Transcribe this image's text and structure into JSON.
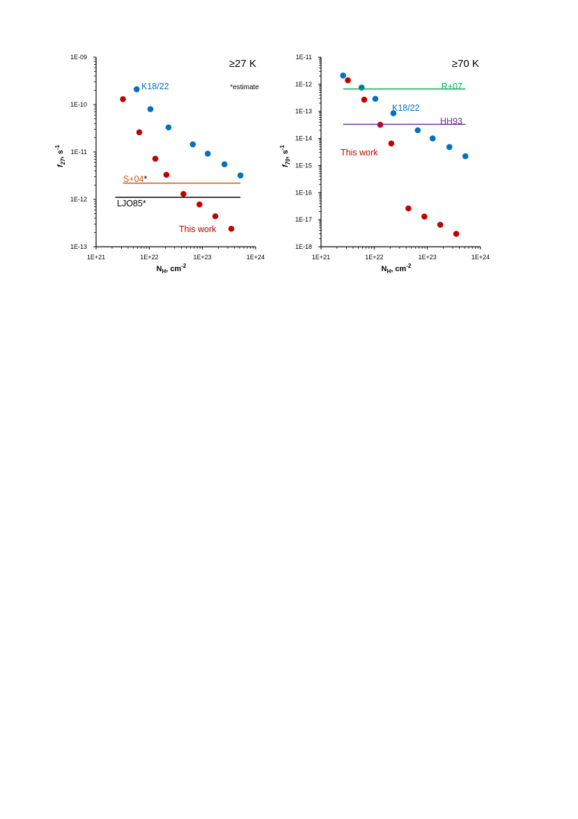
{
  "colors": {
    "this_work": "#C00000",
    "k18_22": "#0070C0",
    "s04": "#C55A11",
    "ljo85": "#000000",
    "r07": "#00B050",
    "hh93": "#7030A0"
  },
  "chart_data": [
    {
      "type": "scatter",
      "title": "≥27 K",
      "note": "*estimate",
      "xlabel": "N",
      "xlabel_sub": "H",
      "xlabel_unit": ", cm",
      "xlabel_sup": "-2",
      "ylabel": "f",
      "ylabel_sub": "27",
      "ylabel_unit": ", s",
      "ylabel_sup": "-1",
      "xscale": "log",
      "yscale": "log",
      "xlim": [
        1e+21,
        1e+24
      ],
      "ylim": [
        1e-13,
        1e-09
      ],
      "xticks": [
        "1E+21",
        "1E+22",
        "1E+23",
        "1E+24"
      ],
      "yticks": [
        "1E-13",
        "1E-12",
        "1E-11",
        "1E-10",
        "1E-09"
      ],
      "series": [
        {
          "name": "This work",
          "color": "#C00000",
          "x": [
            3.2e+21,
            6.5e+21,
            1.3e+22,
            2.1e+22,
            4.4e+22,
            8.8e+22,
            1.75e+23,
            3.5e+23
          ],
          "y": [
            1.3e-10,
            2.6e-11,
            7.2e-12,
            3.3e-12,
            1.3e-12,
            7.8e-13,
            4.4e-13,
            2.4e-13
          ]
        },
        {
          "name": "K18/22",
          "color": "#0070C0",
          "x": [
            5.8e+21,
            1.05e+22,
            2.3e+22,
            6.6e+22,
            1.26e+23,
            2.6e+23,
            5.2e+23
          ],
          "y": [
            2.1e-10,
            8e-11,
            3.3e-11,
            1.45e-11,
            9.2e-12,
            5.5e-12,
            3.2e-12
          ]
        },
        {
          "name": "S+04",
          "suffix": "*",
          "type": "hline",
          "color": "#C55A11",
          "x": [
            3.2e+21,
            5.2e+23
          ],
          "y": 2.2e-12
        },
        {
          "name": "LJO85",
          "suffix": "*",
          "type": "hline",
          "color": "#000000",
          "x": [
            2.3e+21,
            5.2e+23
          ],
          "y": 1.1e-12
        }
      ]
    },
    {
      "type": "scatter",
      "title": "≥70 K",
      "xlabel": "N",
      "xlabel_sub": "H",
      "xlabel_unit": ", cm",
      "xlabel_sup": "-2",
      "ylabel": "f",
      "ylabel_sub": "70",
      "ylabel_unit": ", s",
      "ylabel_sup": "-1",
      "xscale": "log",
      "yscale": "log",
      "xlim": [
        1e+21,
        1e+24
      ],
      "ylim": [
        1e-18,
        1e-11
      ],
      "xticks": [
        "1E+21",
        "1E+22",
        "1E+23",
        "1E+24"
      ],
      "yticks": [
        "1E-18",
        "1E-17",
        "1E-16",
        "1E-15",
        "1E-14",
        "1E-13",
        "1E-12",
        "1E-11"
      ],
      "series": [
        {
          "name": "This work",
          "color": "#C00000",
          "x": [
            3.2e+21,
            6.5e+21,
            1.3e+22,
            2.1e+22,
            4.4e+22,
            8.8e+22,
            1.75e+23,
            3.5e+23
          ],
          "y": [
            1.4e-12,
            2.7e-13,
            3.2e-14,
            6.5e-15,
            2.6e-17,
            1.3e-17,
            6.5e-18,
            3e-18
          ]
        },
        {
          "name": "K18/22",
          "color": "#0070C0",
          "x": [
            2.6e+21,
            5.8e+21,
            1.05e+22,
            2.3e+22,
            6.6e+22,
            1.26e+23,
            2.6e+23,
            5.2e+23
          ],
          "y": [
            2.1e-12,
            7.5e-13,
            2.9e-13,
            8.5e-14,
            2e-14,
            1e-14,
            4.8e-15,
            2.2e-15
          ]
        },
        {
          "name": "R+07",
          "type": "hline",
          "color": "#00B050",
          "x": [
            2.6e+21,
            5.2e+23
          ],
          "y": 6.7e-13
        },
        {
          "name": "HH93",
          "type": "hline",
          "color": "#7030A0",
          "x": [
            2.6e+21,
            5.2e+23
          ],
          "y": 3.3e-14
        }
      ]
    }
  ]
}
